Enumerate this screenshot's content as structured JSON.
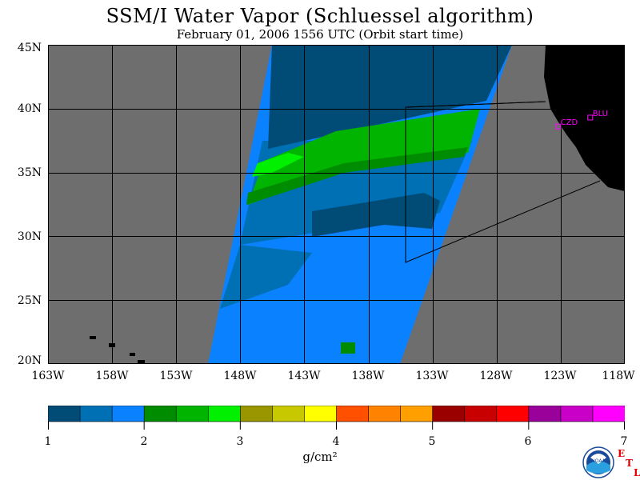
{
  "title": "SSM/I Water Vapor (Schluessel algorithm)",
  "subtitle": "February 01, 2006  1556 UTC  (Orbit start time)",
  "latitude_labels": [
    "45N",
    "40N",
    "35N",
    "30N",
    "25N",
    "20N"
  ],
  "latitude_values": [
    45,
    40,
    35,
    30,
    25,
    20
  ],
  "longitude_labels": [
    "163W",
    "158W",
    "153W",
    "148W",
    "143W",
    "138W",
    "133W",
    "128W",
    "123W",
    "118W"
  ],
  "longitude_values": [
    -163,
    -158,
    -153,
    -148,
    -143,
    -138,
    -133,
    -128,
    -123,
    -118
  ],
  "extent": {
    "lon_min": -163,
    "lon_max": -118,
    "lat_min": 20,
    "lat_max": 45
  },
  "stations": [
    {
      "name": "CZD",
      "lat": 38.6,
      "lon": -123.2
    },
    {
      "name": "BLU",
      "lat": 39.3,
      "lon": -120.7
    }
  ],
  "colorbar": {
    "ticks": [
      "1",
      "2",
      "3",
      "4",
      "5",
      "6",
      "7"
    ],
    "min": 1,
    "max": 7,
    "unit": "g/cm²",
    "colors": [
      "#004c77",
      "#0070b4",
      "#0a82ff",
      "#008c00",
      "#00b400",
      "#00f000",
      "#9a9600",
      "#c8c800",
      "#ffff00",
      "#ff5000",
      "#ff8200",
      "#ffa000",
      "#9b0000",
      "#c80000",
      "#ff0000",
      "#9a009a",
      "#c800c8",
      "#ff00ff"
    ]
  },
  "colors": {
    "no_data": "#6e6e6e",
    "land": "#000000",
    "station": "#ff00ff"
  },
  "logo": {
    "etl_letters": [
      "E",
      "T",
      "L"
    ],
    "noaa": "NOAA"
  }
}
